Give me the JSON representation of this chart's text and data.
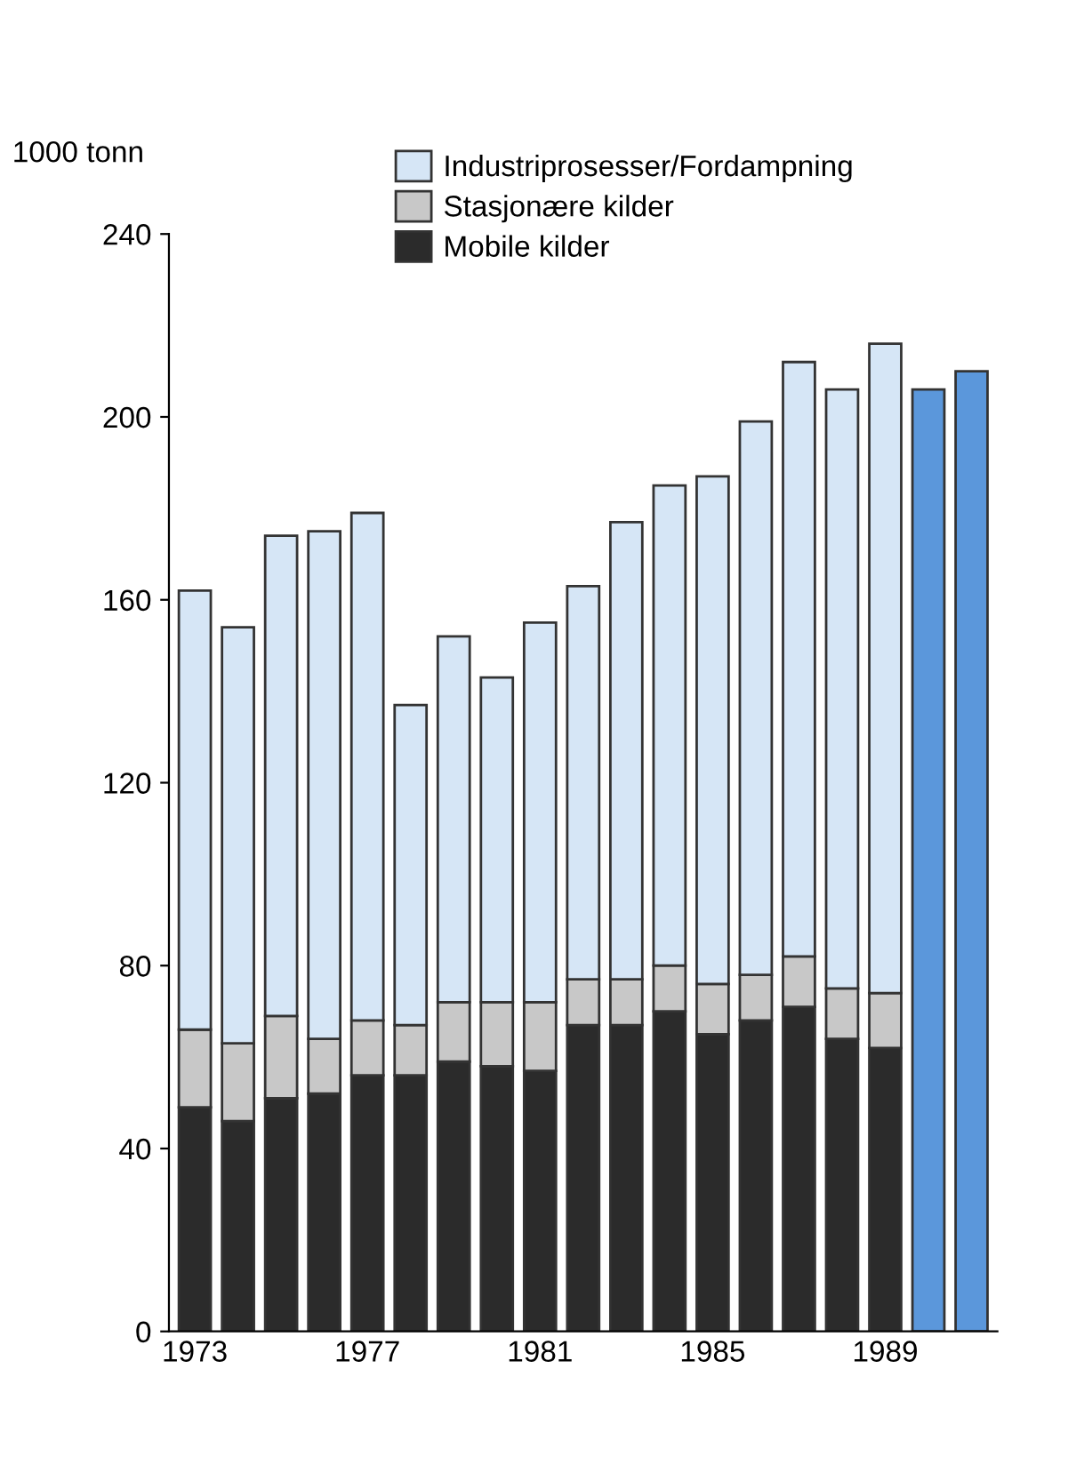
{
  "chart_data": {
    "type": "bar",
    "stacked": true,
    "ylabel": "1000 tonn",
    "categories": [
      "1973",
      null,
      null,
      null,
      "1977",
      null,
      null,
      null,
      "1981",
      null,
      null,
      null,
      "1985",
      null,
      null,
      null,
      "1989",
      null,
      null
    ],
    "series": [
      {
        "name": "Mobile kilder",
        "color": "#2b2b2b",
        "values": [
          49,
          46,
          51,
          52,
          56,
          56,
          59,
          58,
          57,
          67,
          67,
          70,
          65,
          68,
          71,
          64,
          62,
          null,
          null
        ]
      },
      {
        "name": "Stasjonære kilder",
        "color": "#c8c8c8",
        "values": [
          17,
          17,
          18,
          12,
          12,
          11,
          13,
          14,
          15,
          10,
          10,
          10,
          11,
          10,
          11,
          11,
          12,
          null,
          null
        ]
      },
      {
        "name": "Industriprosesser/Fordampning",
        "color": "#d6e6f6",
        "values": [
          96,
          91,
          105,
          111,
          111,
          70,
          80,
          71,
          83,
          86,
          100,
          105,
          111,
          121,
          130,
          131,
          142,
          null,
          null
        ]
      },
      {
        "color": "#5b97db",
        "values": [
          null,
          null,
          null,
          null,
          null,
          null,
          null,
          null,
          null,
          null,
          null,
          null,
          null,
          null,
          null,
          null,
          null,
          206,
          210
        ]
      }
    ],
    "ylim": [
      0,
      240
    ],
    "yticks": [
      0,
      40,
      80,
      120,
      160,
      200,
      240
    ],
    "grid": false,
    "legend": "top"
  }
}
